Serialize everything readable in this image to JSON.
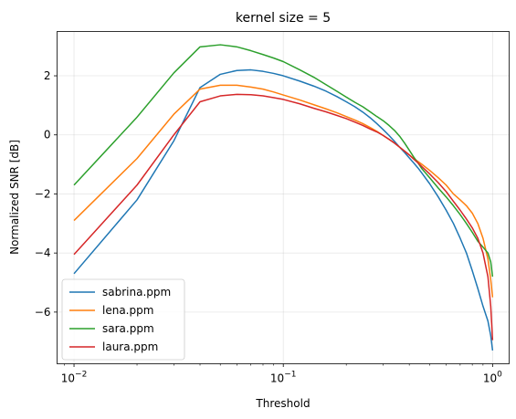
{
  "chart_data": {
    "type": "line",
    "title": "kernel size = 5",
    "xlabel": "Threshold",
    "ylabel": "Normalized SNR [dB]",
    "xscale": "log",
    "xlim": [
      0.0083,
      1.2
    ],
    "ylim": [
      -7.75,
      3.5
    ],
    "x_ticks": [
      {
        "value": 0.01,
        "base": "10",
        "exp": "−2"
      },
      {
        "value": 0.1,
        "base": "10",
        "exp": "−1"
      },
      {
        "value": 1,
        "base": "10",
        "exp": "0"
      }
    ],
    "y_ticks": [
      {
        "value": 2,
        "label": "2"
      },
      {
        "value": 0,
        "label": "0"
      },
      {
        "value": -2,
        "label": "−2"
      },
      {
        "value": -4,
        "label": "−4"
      },
      {
        "value": -6,
        "label": "−6"
      }
    ],
    "grid": true,
    "legend_position": "lower-left",
    "x": [
      0.01,
      0.02,
      0.03,
      0.04,
      0.05,
      0.06,
      0.07,
      0.08,
      0.09,
      0.1,
      0.12,
      0.14,
      0.16,
      0.18,
      0.2,
      0.22,
      0.24,
      0.26,
      0.28,
      0.3,
      0.32,
      0.34,
      0.36,
      0.38,
      0.4,
      0.42,
      0.44,
      0.46,
      0.5,
      0.55,
      0.6,
      0.65,
      0.7,
      0.75,
      0.8,
      0.85,
      0.9,
      0.95,
      0.98,
      1.0
    ],
    "series": [
      {
        "name": "sabrina.ppm",
        "color": "#1f77b4",
        "values": [
          -4.7,
          -2.2,
          -0.2,
          1.6,
          2.05,
          2.18,
          2.2,
          2.15,
          2.08,
          2.0,
          1.82,
          1.65,
          1.48,
          1.3,
          1.12,
          0.95,
          0.77,
          0.58,
          0.38,
          0.18,
          -0.02,
          -0.22,
          -0.42,
          -0.6,
          -0.78,
          -0.95,
          -1.12,
          -1.3,
          -1.65,
          -2.1,
          -2.55,
          -3.0,
          -3.5,
          -4.0,
          -4.6,
          -5.2,
          -5.8,
          -6.3,
          -6.8,
          -7.3
        ]
      },
      {
        "name": "lena.ppm",
        "color": "#ff7f0e",
        "values": [
          -2.9,
          -0.8,
          0.7,
          1.55,
          1.68,
          1.68,
          1.62,
          1.55,
          1.45,
          1.35,
          1.18,
          1.02,
          0.88,
          0.75,
          0.62,
          0.5,
          0.38,
          0.25,
          0.12,
          -0.02,
          -0.15,
          -0.28,
          -0.42,
          -0.55,
          -0.68,
          -0.8,
          -0.9,
          -1.0,
          -1.2,
          -1.45,
          -1.7,
          -2.0,
          -2.2,
          -2.4,
          -2.65,
          -3.0,
          -3.5,
          -4.2,
          -4.9,
          -5.5
        ]
      },
      {
        "name": "sara.ppm",
        "color": "#2ca02c",
        "values": [
          -1.7,
          0.6,
          2.1,
          2.98,
          3.05,
          2.98,
          2.85,
          2.72,
          2.6,
          2.48,
          2.2,
          1.95,
          1.7,
          1.48,
          1.28,
          1.1,
          0.95,
          0.78,
          0.62,
          0.48,
          0.32,
          0.15,
          -0.05,
          -0.28,
          -0.52,
          -0.75,
          -0.95,
          -1.15,
          -1.45,
          -1.8,
          -2.1,
          -2.4,
          -2.7,
          -3.0,
          -3.3,
          -3.6,
          -3.8,
          -4.0,
          -4.3,
          -4.8
        ]
      },
      {
        "name": "laura.ppm",
        "color": "#d62728",
        "values": [
          -4.05,
          -1.7,
          0.0,
          1.12,
          1.32,
          1.37,
          1.36,
          1.32,
          1.26,
          1.2,
          1.05,
          0.9,
          0.78,
          0.66,
          0.55,
          0.43,
          0.32,
          0.2,
          0.1,
          -0.02,
          -0.15,
          -0.28,
          -0.42,
          -0.55,
          -0.68,
          -0.82,
          -0.95,
          -1.08,
          -1.32,
          -1.62,
          -1.92,
          -2.25,
          -2.55,
          -2.85,
          -3.15,
          -3.5,
          -4.0,
          -4.8,
          -5.8,
          -6.95
        ]
      }
    ]
  }
}
